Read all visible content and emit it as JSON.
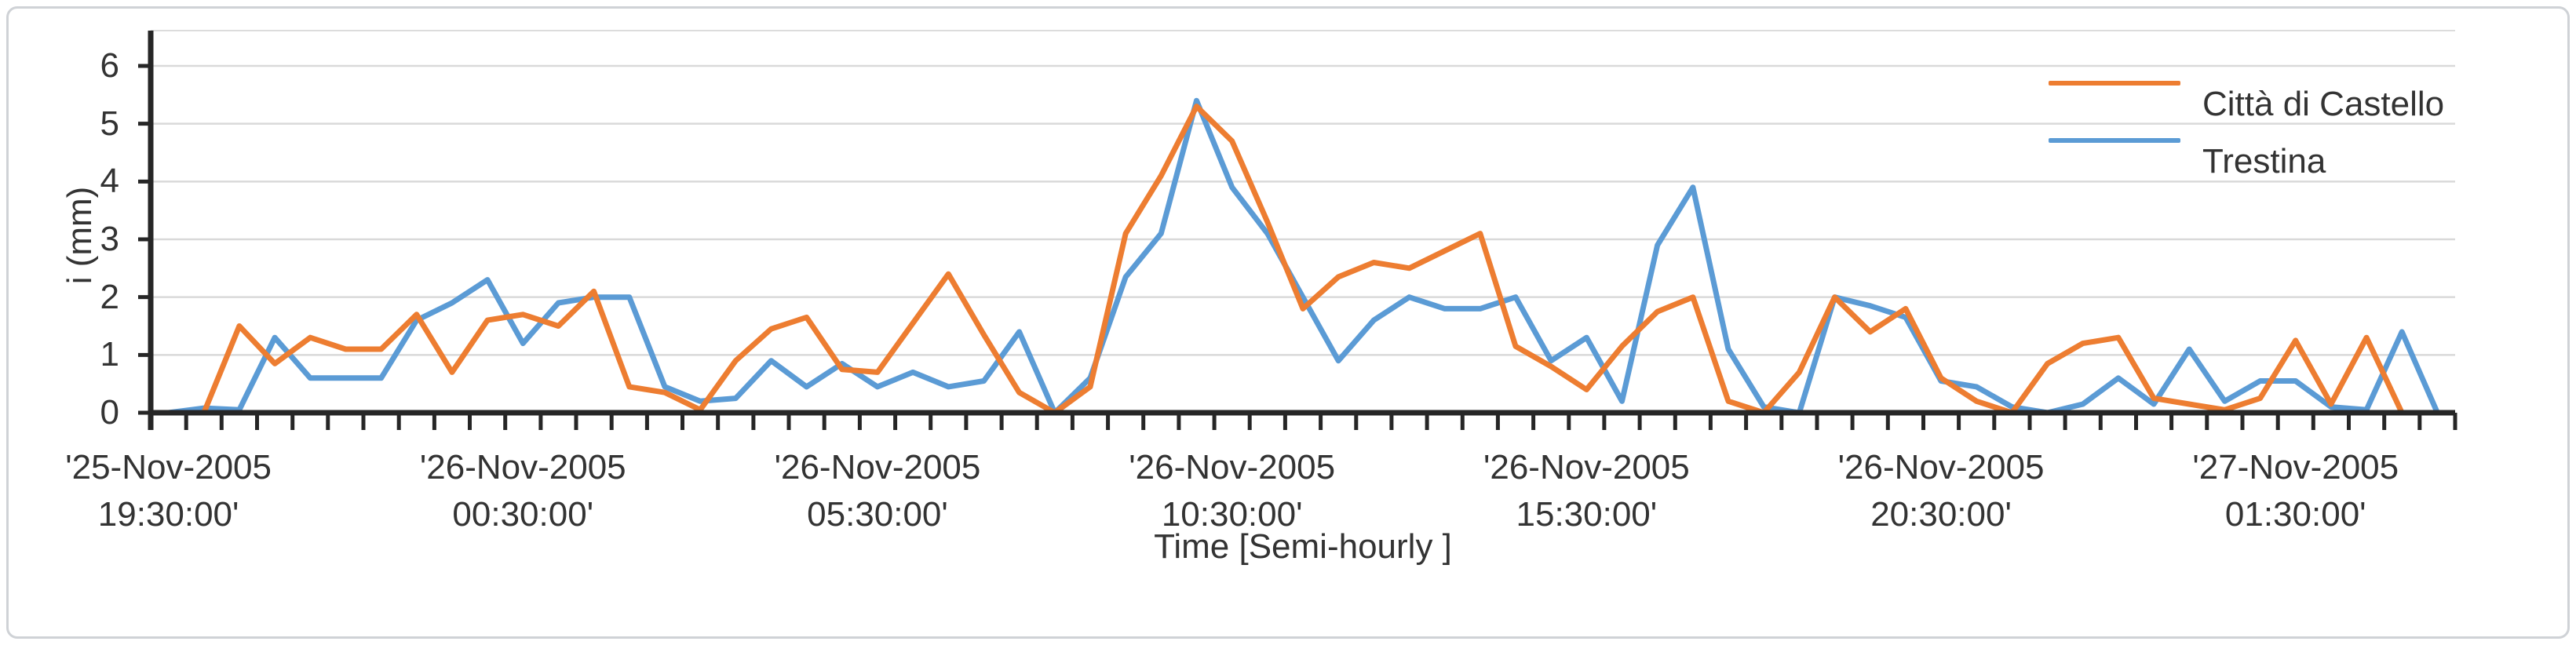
{
  "chart_data": {
    "type": "line",
    "title": "",
    "xlabel": "Time [Semi-hourly ]",
    "ylabel": "i (mm)",
    "ylim": [
      0,
      6
    ],
    "grid": true,
    "legend_position": "top-right",
    "y_ticks": [
      "6",
      "5",
      "4",
      "3",
      "2",
      "1",
      "0"
    ],
    "x_label_interval": 10,
    "x_tick_labels": [
      {
        "line1": "'25-Nov-2005",
        "line2": "19:30:00'"
      },
      {
        "line1": "'26-Nov-2005",
        "line2": "00:30:00'"
      },
      {
        "line1": "'26-Nov-2005",
        "line2": "05:30:00'"
      },
      {
        "line1": "'26-Nov-2005",
        "line2": "10:30:00'"
      },
      {
        "line1": "'26-Nov-2005",
        "line2": "15:30:00'"
      },
      {
        "line1": "'26-Nov-2005",
        "line2": "20:30:00'"
      },
      {
        "line1": "'27-Nov-2005",
        "line2": "01:30:00'"
      }
    ],
    "series": [
      {
        "name": "Città di Castello",
        "color": "#ED7D31",
        "values": [
          0,
          0,
          1.5,
          0.85,
          1.3,
          1.1,
          1.1,
          1.7,
          0.7,
          1.6,
          1.7,
          1.5,
          2.1,
          0.45,
          0.35,
          0.05,
          0.9,
          1.45,
          1.65,
          0.75,
          0.7,
          1.55,
          2.4,
          1.35,
          0.35,
          0,
          0.45,
          3.1,
          4.1,
          5.3,
          4.7,
          3.3,
          1.8,
          2.35,
          2.6,
          2.5,
          2.8,
          3.1,
          1.15,
          0.8,
          0.4,
          1.15,
          1.75,
          2.0,
          0.2,
          0,
          0.7,
          2.0,
          1.4,
          1.8,
          0.6,
          0.2,
          0,
          0.85,
          1.2,
          1.3,
          0.25,
          0.15,
          0.05,
          0.25,
          1.25,
          0.15,
          1.3,
          0,
          0
        ]
      },
      {
        "name": "Trestina",
        "color": "#5B9BD5",
        "values": [
          0,
          0.08,
          0.05,
          1.3,
          0.6,
          0.6,
          0.6,
          1.6,
          1.9,
          2.3,
          1.2,
          1.9,
          2.0,
          2.0,
          0.45,
          0.2,
          0.25,
          0.9,
          0.45,
          0.85,
          0.45,
          0.7,
          0.45,
          0.55,
          1.4,
          0,
          0.6,
          2.35,
          3.1,
          5.4,
          3.9,
          3.1,
          2.0,
          0.9,
          1.6,
          2.0,
          1.8,
          1.8,
          2.0,
          0.9,
          1.3,
          0.2,
          2.9,
          3.9,
          1.1,
          0.1,
          0,
          2.0,
          1.85,
          1.65,
          0.55,
          0.45,
          0.1,
          0,
          0.15,
          0.6,
          0.15,
          1.1,
          0.2,
          0.55,
          0.55,
          0.1,
          0.05,
          1.4,
          0
        ]
      }
    ]
  }
}
